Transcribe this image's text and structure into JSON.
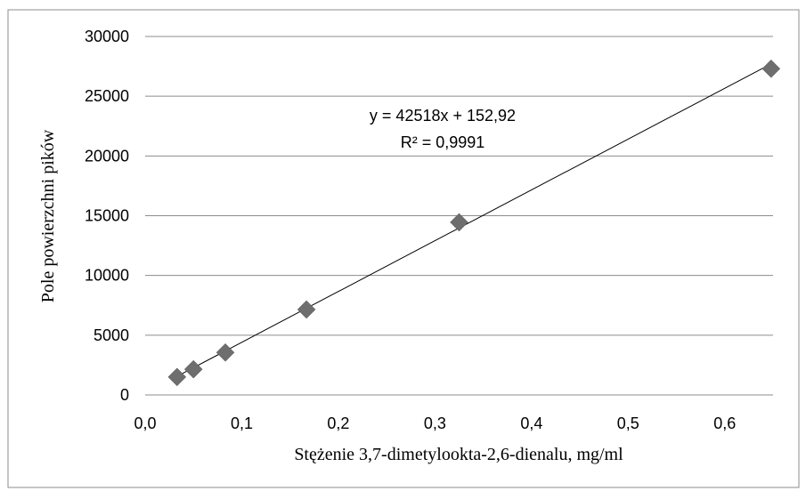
{
  "chart_data": {
    "type": "scatter",
    "title": "",
    "xlabel": "Stężenie 3,7-dimetylookta-2,6-dienalu, mg/ml",
    "ylabel": "Pole powierzchni pików",
    "xlim": [
      0,
      0.65
    ],
    "ylim": [
      0,
      30000
    ],
    "x_ticks": [
      "0,0",
      "0,1",
      "0,2",
      "0,3",
      "0,4",
      "0,5",
      "0,6"
    ],
    "x_tick_values": [
      0,
      0.1,
      0.2,
      0.3,
      0.4,
      0.5,
      0.6
    ],
    "y_ticks": [
      "0",
      "5000",
      "10000",
      "15000",
      "20000",
      "25000",
      "30000"
    ],
    "y_tick_values": [
      0,
      5000,
      10000,
      15000,
      20000,
      25000,
      30000
    ],
    "grid": "horizontal",
    "legend": "none",
    "marker": "diamond",
    "marker_color": "#6e6e6e",
    "series": [
      {
        "x": [
          0.033,
          0.05,
          0.083,
          0.167,
          0.325,
          0.648
        ],
        "y": [
          1500,
          2150,
          3550,
          7150,
          14450,
          27300
        ]
      }
    ],
    "trendline": {
      "type": "linear",
      "slope": 42518,
      "intercept": 152.92,
      "x_range": [
        0.033,
        0.648
      ],
      "equation_label": "y = 42518x + 152,92",
      "r2_label": "R² = 0,9991"
    }
  }
}
